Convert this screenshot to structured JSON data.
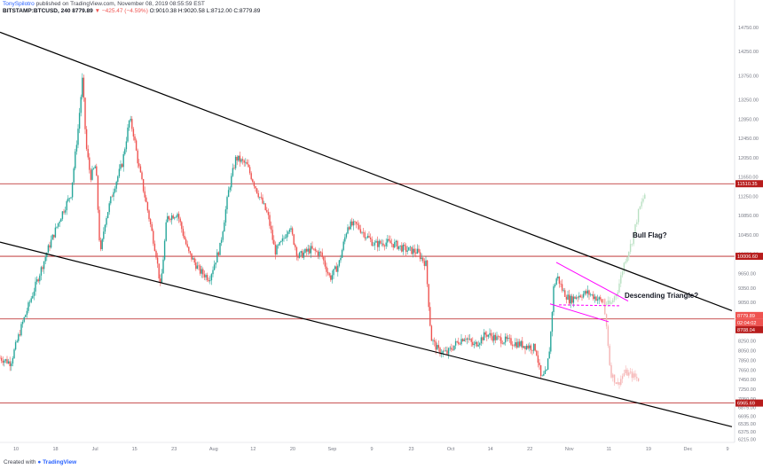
{
  "header": {
    "user": "TonySpilotro",
    "published": "published on TradingView.com, November 08, 2019 08:55:59 EST",
    "symbol": "BITSTAMP:BTCUSD, 240",
    "price": "8779.89",
    "change": "▼ −425.47 (−4.59%)",
    "ohlc": "O:9010.38 H:9020.58 L:8712.00 C:8779.89"
  },
  "footer": {
    "created_with": "Created with",
    "brand": "TradingView"
  },
  "colors": {
    "up": "#26a69a",
    "down": "#ef5350",
    "projected_up": "#b8e0c2",
    "projected_down": "#f6b3b3",
    "level_line": "#b71c1c",
    "channel": "#000000",
    "pattern": "#ff00ff"
  },
  "annotations": {
    "bull_flag": "Bull Flag?",
    "descending_triangle": "Descending Triangle?"
  },
  "chart_data": {
    "type": "candlestick",
    "x_ticks": [
      "10",
      "18",
      "Jul",
      "15",
      "23",
      "Aug",
      "12",
      "20",
      "Sep",
      "9",
      "23",
      "Oct",
      "14",
      "22",
      "Nov",
      "11",
      "19",
      "Dec",
      "9"
    ],
    "y_ticks": [
      14750,
      14250,
      13750,
      13250,
      12850,
      12450,
      12050,
      11650,
      11250,
      10850,
      10450,
      10050,
      9650,
      9350,
      9050,
      8650,
      8250,
      8050,
      7850,
      7650,
      7450,
      7250,
      7050,
      6875,
      6695,
      6535,
      6375,
      6215
    ],
    "y_range": [
      6150,
      14950
    ],
    "price_labels": [
      {
        "label": "11510.35",
        "value": 11510.35
      },
      {
        "label": "10006.60",
        "value": 10006.6
      },
      {
        "label": "8779.89",
        "value": 8779.89
      },
      {
        "label": "02:04:02",
        "value": 8779.89
      },
      {
        "label": "8708.04",
        "value": 8708.04
      },
      {
        "label": "6965.69",
        "value": 6965.69
      }
    ],
    "horizontal_levels": [
      11510.35,
      10006.6,
      8708.04,
      6965.69
    ],
    "price_path": [
      [
        0,
        7900
      ],
      [
        12,
        7800
      ],
      [
        25,
        8600
      ],
      [
        40,
        9400
      ],
      [
        55,
        10200
      ],
      [
        70,
        10900
      ],
      [
        80,
        11300
      ],
      [
        88,
        12650
      ],
      [
        93,
        13700
      ],
      [
        97,
        12300
      ],
      [
        102,
        11650
      ],
      [
        108,
        11900
      ],
      [
        113,
        10000
      ],
      [
        118,
        10700
      ],
      [
        128,
        11400
      ],
      [
        138,
        11950
      ],
      [
        146,
        12850
      ],
      [
        150,
        12600
      ],
      [
        156,
        11900
      ],
      [
        166,
        11000
      ],
      [
        176,
        10050
      ],
      [
        181,
        9350
      ],
      [
        188,
        10800
      ],
      [
        200,
        10900
      ],
      [
        212,
        10100
      ],
      [
        225,
        9700
      ],
      [
        236,
        9550
      ],
      [
        248,
        10200
      ],
      [
        258,
        11400
      ],
      [
        266,
        12050
      ],
      [
        278,
        11900
      ],
      [
        290,
        11350
      ],
      [
        302,
        10850
      ],
      [
        310,
        10100
      ],
      [
        318,
        10300
      ],
      [
        326,
        10650
      ],
      [
        336,
        10000
      ],
      [
        350,
        10150
      ],
      [
        362,
        10050
      ],
      [
        372,
        9550
      ],
      [
        382,
        9850
      ],
      [
        392,
        10650
      ],
      [
        402,
        10650
      ],
      [
        412,
        10450
      ],
      [
        422,
        10250
      ],
      [
        434,
        10300
      ],
      [
        446,
        10250
      ],
      [
        456,
        10150
      ],
      [
        470,
        10100
      ],
      [
        480,
        9850
      ],
      [
        486,
        8300
      ],
      [
        494,
        8050
      ],
      [
        504,
        8000
      ],
      [
        514,
        8200
      ],
      [
        524,
        8350
      ],
      [
        534,
        8150
      ],
      [
        548,
        8400
      ],
      [
        560,
        8300
      ],
      [
        572,
        8250
      ],
      [
        582,
        8200
      ],
      [
        594,
        8150
      ],
      [
        604,
        8100
      ],
      [
        610,
        7450
      ],
      [
        616,
        7600
      ],
      [
        620,
        8200
      ],
      [
        624,
        9350
      ],
      [
        628,
        9600
      ],
      [
        634,
        9300
      ],
      [
        642,
        9100
      ],
      [
        652,
        9200
      ],
      [
        662,
        9250
      ],
      [
        672,
        9150
      ],
      [
        680,
        9050
      ]
    ],
    "projection_up": [
      [
        680,
        9050
      ],
      [
        688,
        9000
      ],
      [
        696,
        9300
      ],
      [
        704,
        9900
      ],
      [
        712,
        10300
      ],
      [
        720,
        10950
      ],
      [
        728,
        11350
      ]
    ],
    "projection_down": [
      [
        680,
        9050
      ],
      [
        684,
        8500
      ],
      [
        688,
        7600
      ],
      [
        696,
        7350
      ],
      [
        704,
        7600
      ],
      [
        712,
        7550
      ],
      [
        720,
        7450
      ]
    ],
    "channel_lines": [
      {
        "points": [
          [
            0,
            14650
          ],
          [
            825,
            8880
          ]
        ]
      },
      {
        "points": [
          [
            0,
            10300
          ],
          [
            825,
            6475
          ]
        ]
      }
    ],
    "bull_flag_pattern": {
      "upper": [
        [
          627,
          9880
        ],
        [
          708,
          9080
        ]
      ],
      "lower": [
        [
          620,
          9020
        ],
        [
          686,
          8650
        ]
      ],
      "dashed": [
        [
          630,
          9000
        ],
        [
          700,
          8980
        ]
      ]
    },
    "grid": false
  }
}
